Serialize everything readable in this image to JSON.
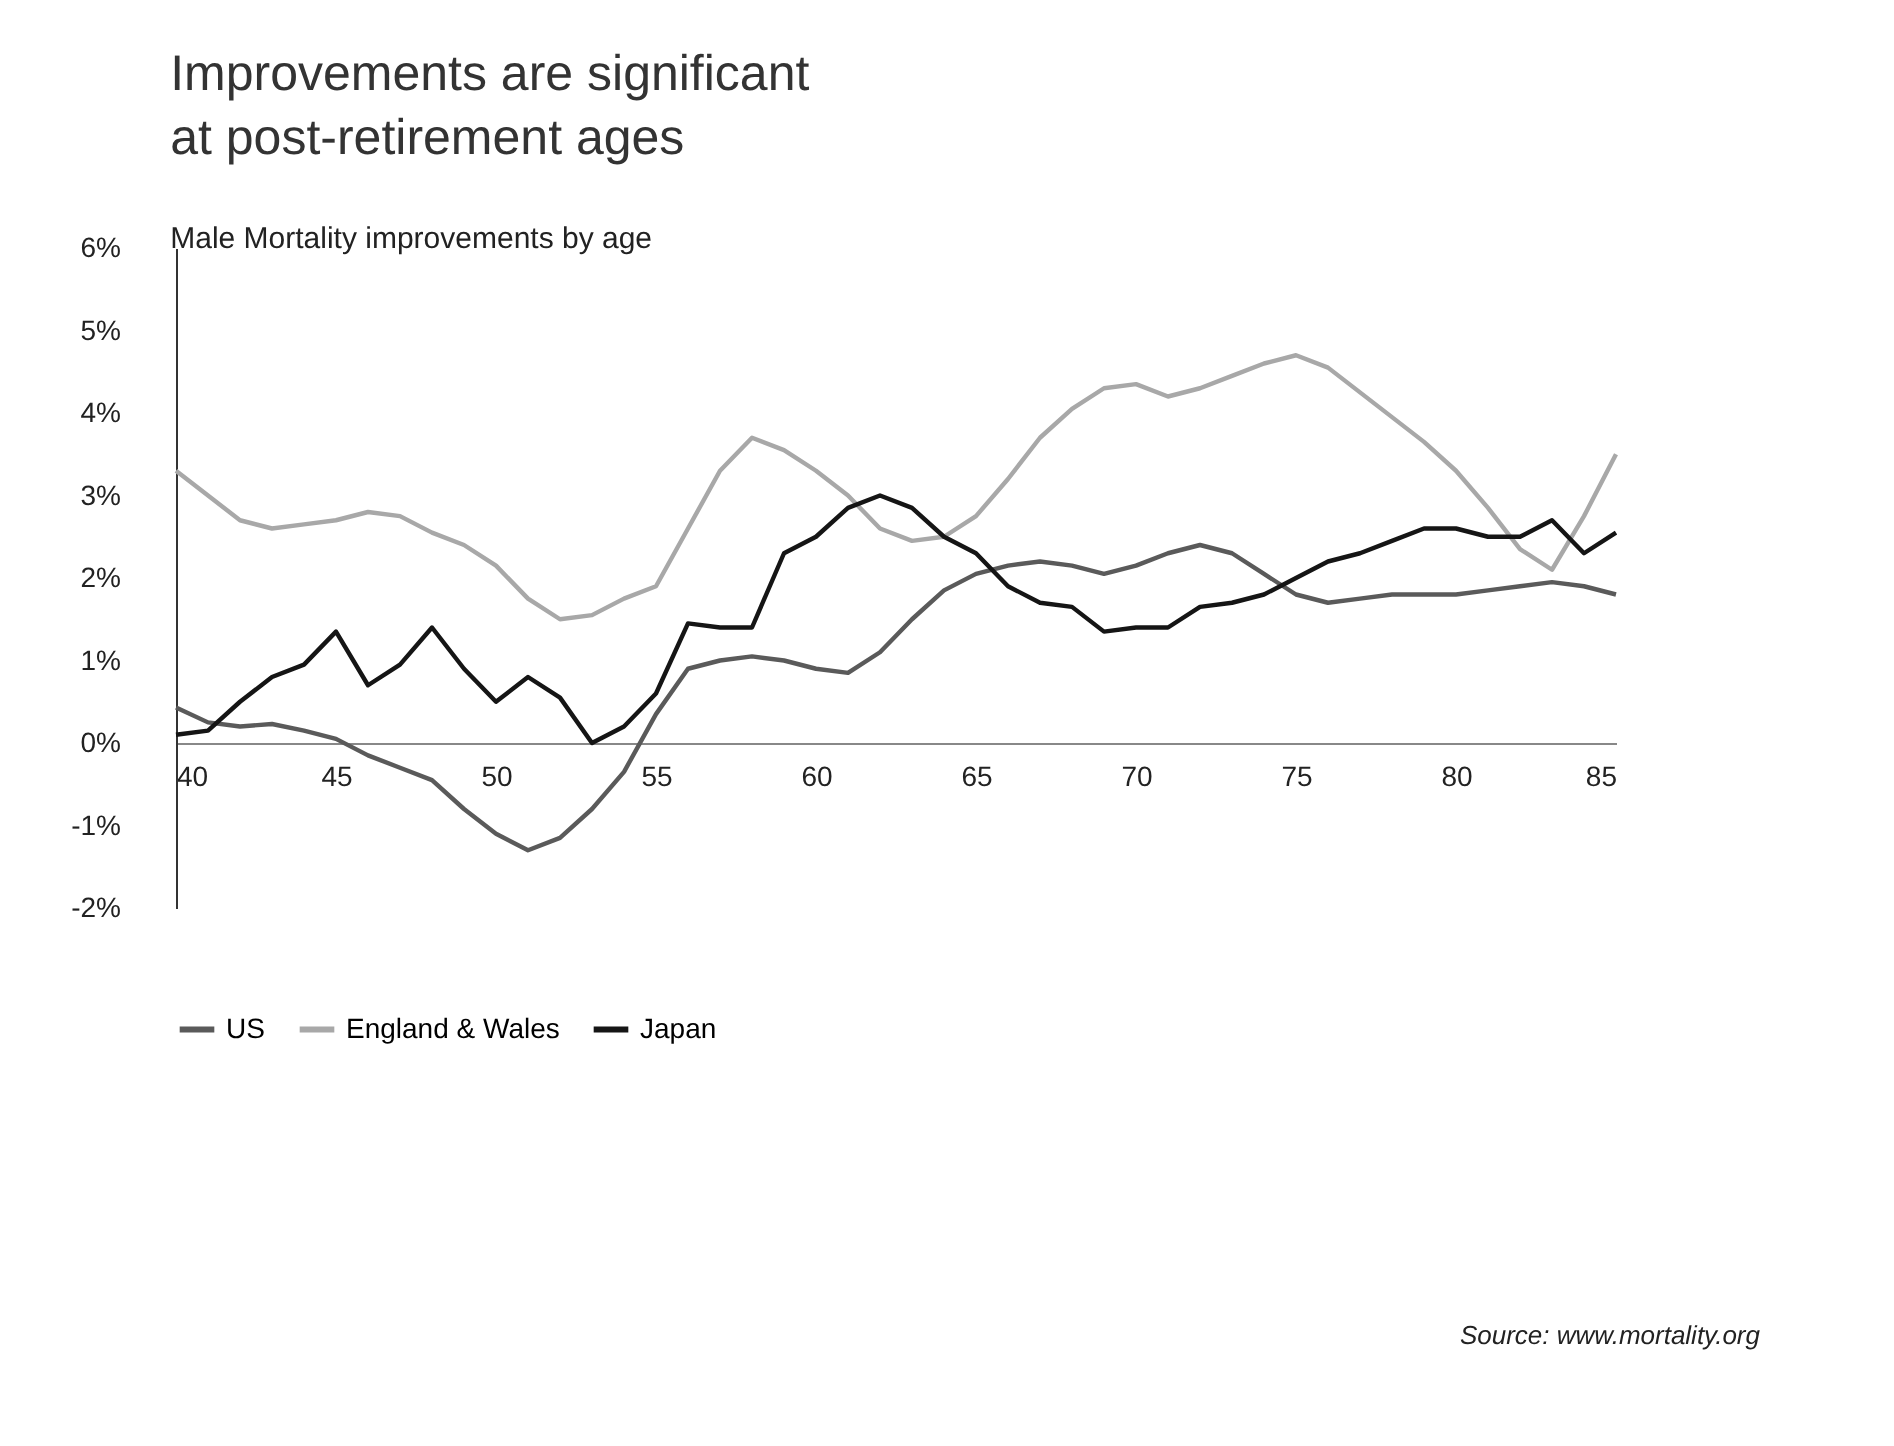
{
  "chart_data": {
    "type": "line",
    "title": "Improvements are significant\nat post-retirement ages",
    "subtitle": "Male Mortality improvements by age",
    "x": [
      40,
      41,
      42,
      43,
      44,
      45,
      46,
      47,
      48,
      49,
      50,
      51,
      52,
      53,
      54,
      55,
      56,
      57,
      58,
      59,
      60,
      61,
      62,
      63,
      64,
      65,
      66,
      67,
      68,
      69,
      70,
      71,
      72,
      73,
      74,
      75,
      76,
      77,
      78,
      79,
      80,
      81,
      82,
      83,
      84,
      85
    ],
    "series": [
      {
        "name": "US",
        "color": "#5a5a5a",
        "values": [
          0.43,
          0.25,
          0.2,
          0.23,
          0.15,
          0.05,
          -0.15,
          -0.3,
          -0.45,
          -0.8,
          -1.1,
          -1.3,
          -1.15,
          -0.8,
          -0.35,
          0.35,
          0.9,
          1.0,
          1.05,
          1.0,
          0.9,
          0.85,
          1.1,
          1.5,
          1.85,
          2.05,
          2.15,
          2.2,
          2.15,
          2.05,
          2.15,
          2.3,
          2.4,
          2.3,
          2.05,
          1.8,
          1.7,
          1.75,
          1.8,
          1.8,
          1.8,
          1.85,
          1.9,
          1.95,
          1.9,
          1.8
        ]
      },
      {
        "name": "England & Wales",
        "color": "#a8a8a8",
        "values": [
          3.3,
          3.0,
          2.7,
          2.6,
          2.65,
          2.7,
          2.8,
          2.75,
          2.55,
          2.4,
          2.15,
          1.75,
          1.5,
          1.55,
          1.75,
          1.9,
          2.6,
          3.3,
          3.7,
          3.55,
          3.3,
          3.0,
          2.6,
          2.45,
          2.5,
          2.75,
          3.2,
          3.7,
          4.05,
          4.3,
          4.35,
          4.2,
          4.3,
          4.45,
          4.6,
          4.7,
          4.55,
          4.25,
          3.95,
          3.65,
          3.3,
          2.85,
          2.35,
          2.1,
          2.75,
          3.5
        ]
      },
      {
        "name": "Japan",
        "color": "#151515",
        "values": [
          0.1,
          0.15,
          0.5,
          0.8,
          0.95,
          1.35,
          0.7,
          0.95,
          1.4,
          0.9,
          0.5,
          0.8,
          0.55,
          0.0,
          0.2,
          0.6,
          1.45,
          1.4,
          1.4,
          2.3,
          2.5,
          2.85,
          3.0,
          2.85,
          2.5,
          2.3,
          1.9,
          1.7,
          1.65,
          1.35,
          1.4,
          1.4,
          1.65,
          1.7,
          1.8,
          2.0,
          2.2,
          2.3,
          2.45,
          2.6,
          2.6,
          2.5,
          2.5,
          2.7,
          2.3,
          2.55
        ]
      }
    ],
    "xlim": [
      40,
      85
    ],
    "xticks": [
      40,
      45,
      50,
      55,
      60,
      65,
      70,
      75,
      80,
      85
    ],
    "ylim": [
      -2,
      6
    ],
    "yticks": [
      {
        "value": -2,
        "label": "-2%"
      },
      {
        "value": -1,
        "label": "-1%"
      },
      {
        "value": 0,
        "label": "0%"
      },
      {
        "value": 1,
        "label": "1%"
      },
      {
        "value": 2,
        "label": "2%"
      },
      {
        "value": 3,
        "label": "3%"
      },
      {
        "value": 4,
        "label": "4%"
      },
      {
        "value": 5,
        "label": "5%"
      },
      {
        "value": 6,
        "label": "6%"
      }
    ],
    "grid": false,
    "legend": "bottom",
    "marker": "none",
    "line_style": "solid",
    "annotations": [
      "Source: www.mortality.org"
    ]
  }
}
